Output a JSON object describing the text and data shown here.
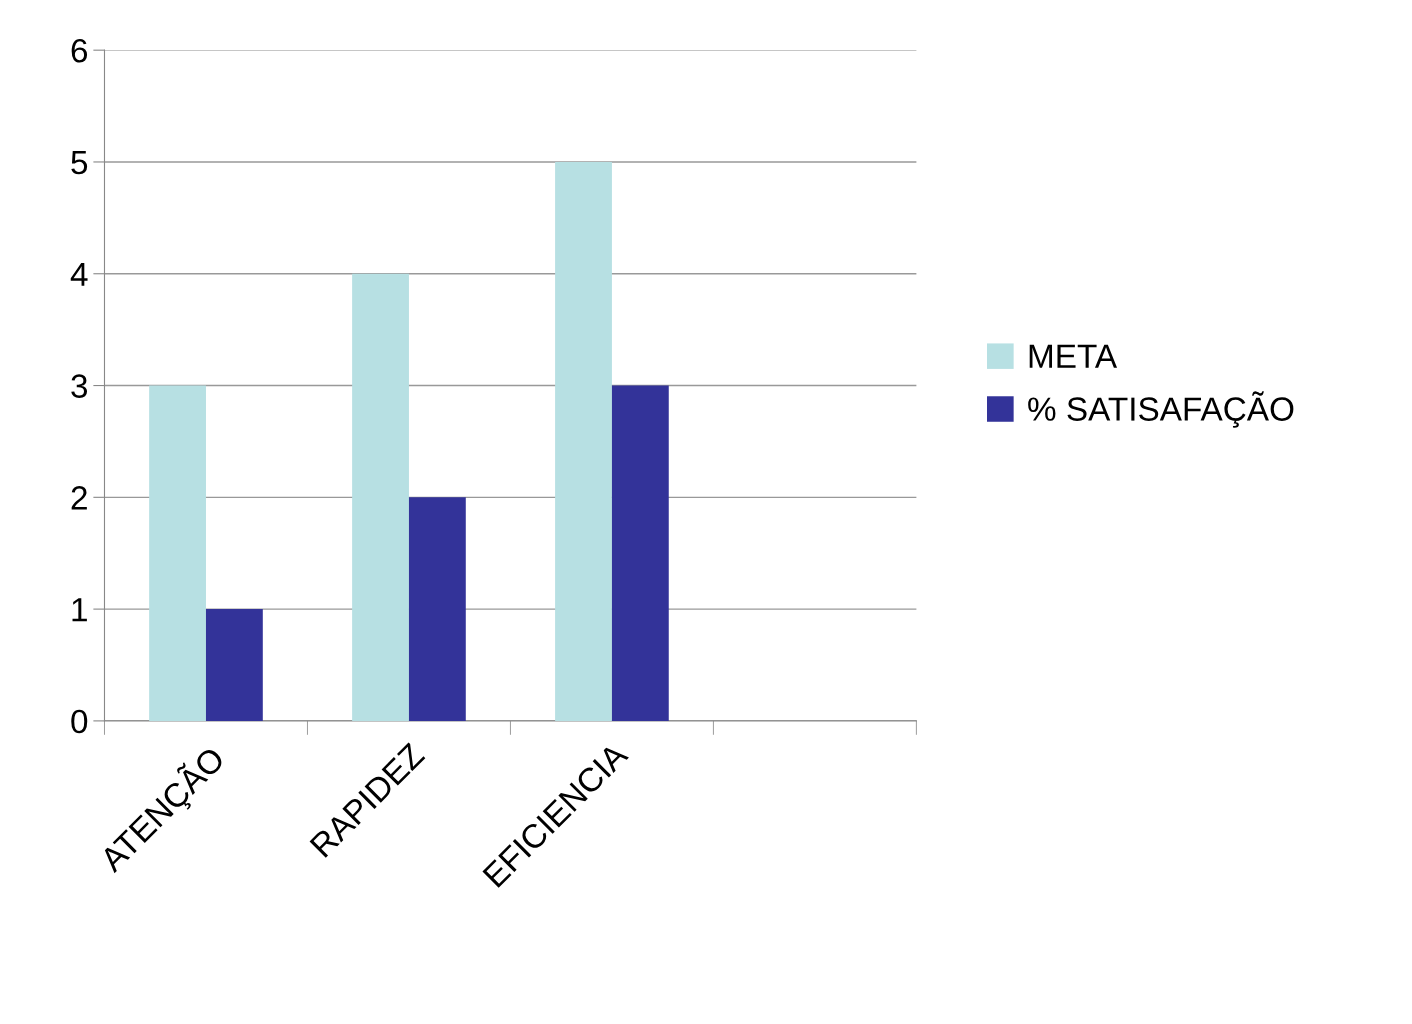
{
  "chart_data": {
    "type": "bar",
    "categories": [
      "ATENÇÃO",
      "RAPIDEZ",
      "EFICIENCIA",
      null
    ],
    "series": [
      {
        "name": "META",
        "color": "#b7e0e3",
        "values": [
          3,
          4,
          5,
          null
        ]
      },
      {
        "name": "% SATISAFAÇÃO",
        "color": "#333399",
        "values": [
          1,
          2,
          3,
          null
        ]
      }
    ],
    "ylim": [
      0,
      6
    ],
    "yticks": [
      0,
      1,
      2,
      3,
      4,
      5,
      6
    ],
    "grid": "y",
    "legend": "right"
  }
}
